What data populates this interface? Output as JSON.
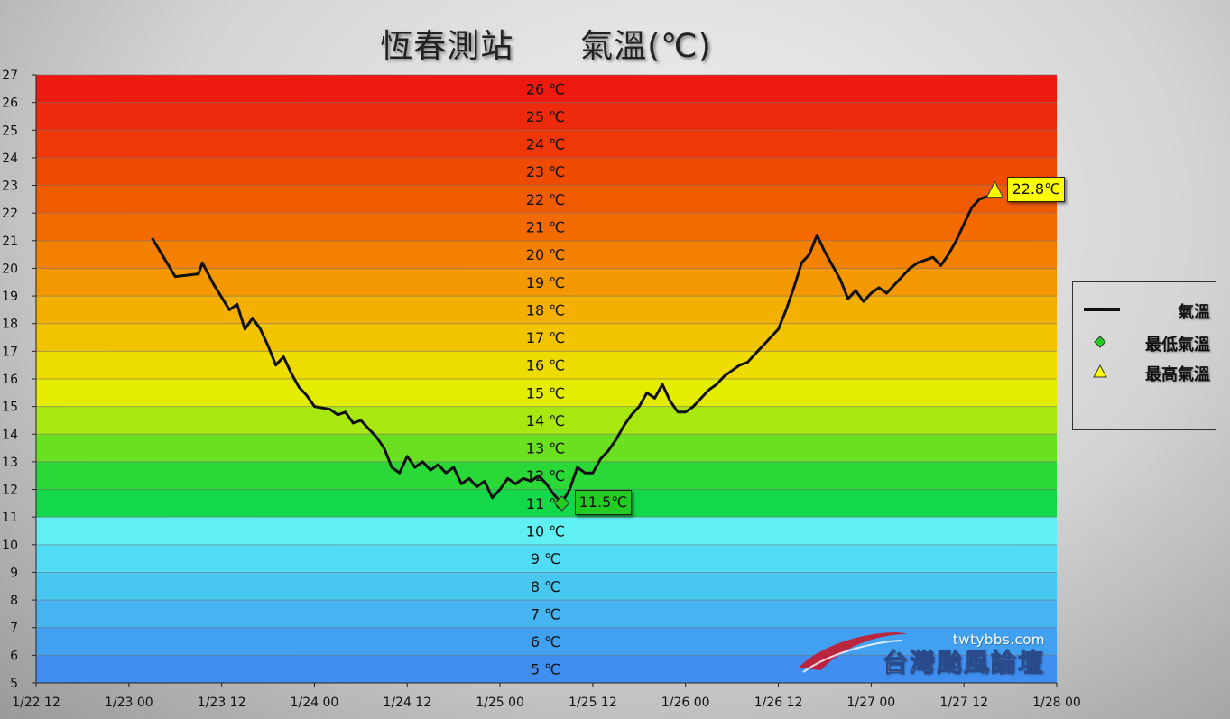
{
  "title": "恆春測站　　氣溫(℃)",
  "legend": {
    "line": "氣溫",
    "min": "最低氣溫",
    "max": "最高氣溫"
  },
  "watermark": {
    "url": "twtybbs.com",
    "name": "台灣颱風論壇"
  },
  "min_label": "11.5℃",
  "max_label": "22.8℃",
  "colors": {
    "line": "#111111",
    "min_marker": "#22cc22",
    "max_marker": "#ffff00"
  },
  "chart_data": {
    "type": "line",
    "title": "恆春測站　　氣溫(℃)",
    "ylim": [
      5,
      27
    ],
    "y_ticks": [
      "5",
      "6",
      "7",
      "8",
      "9",
      "10",
      "11",
      "12",
      "13",
      "14",
      "15",
      "16",
      "17",
      "18",
      "19",
      "20",
      "21",
      "22",
      "23",
      "24",
      "25",
      "26",
      "27"
    ],
    "x_ticks": [
      "1/22 12",
      "1/23 00",
      "1/23 12",
      "1/24 00",
      "1/24 12",
      "1/25 00",
      "1/25 12",
      "1/26 00",
      "1/26 12",
      "1/27 00",
      "1/27 12",
      "1/28 00"
    ],
    "band_labels": [
      "5 ℃",
      "6 ℃",
      "7 ℃",
      "8 ℃",
      "9 ℃",
      "10 ℃",
      "11 ℃",
      "12 ℃",
      "13 ℃",
      "14 ℃",
      "15 ℃",
      "16 ℃",
      "17 ℃",
      "18 ℃",
      "19 ℃",
      "20 ℃",
      "21 ℃",
      "22 ℃",
      "23 ℃",
      "24 ℃",
      "25 ℃",
      "26 ℃"
    ],
    "band_colors": [
      "#3f8ef0",
      "#42a0f0",
      "#45b4f0",
      "#48c8f0",
      "#50dcf4",
      "#60f0f4",
      "#12d84a",
      "#2ad838",
      "#6ae020",
      "#a8e810",
      "#e4ec00",
      "#eedc00",
      "#f2c400",
      "#f4b000",
      "#f49800",
      "#f48000",
      "#f26a00",
      "#f05a00",
      "#ee4a00",
      "#ee3808",
      "#ee2a0c",
      "#ee1a10"
    ],
    "series": [
      {
        "name": "氣溫",
        "points": [
          [
            "1/23 03",
            21.1
          ],
          [
            "1/23 06",
            19.7
          ],
          [
            "1/23 09",
            19.8
          ],
          [
            "1/23 09.5",
            20.2
          ],
          [
            "1/23 11",
            19.4
          ],
          [
            "1/23 13",
            18.5
          ],
          [
            "1/23 14",
            18.7
          ],
          [
            "1/23 15",
            17.8
          ],
          [
            "1/23 16",
            18.2
          ],
          [
            "1/23 17",
            17.8
          ],
          [
            "1/23 18",
            17.2
          ],
          [
            "1/23 19",
            16.5
          ],
          [
            "1/23 20",
            16.8
          ],
          [
            "1/23 21",
            16.2
          ],
          [
            "1/23 22",
            15.7
          ],
          [
            "1/23 23",
            15.4
          ],
          [
            "1/24 00",
            15.0
          ],
          [
            "1/24 02",
            14.9
          ],
          [
            "1/24 03",
            14.7
          ],
          [
            "1/24 04",
            14.8
          ],
          [
            "1/24 05",
            14.4
          ],
          [
            "1/24 06",
            14.5
          ],
          [
            "1/24 07",
            14.2
          ],
          [
            "1/24 08",
            13.9
          ],
          [
            "1/24 09",
            13.5
          ],
          [
            "1/24 10",
            12.8
          ],
          [
            "1/24 11",
            12.6
          ],
          [
            "1/24 12",
            13.2
          ],
          [
            "1/24 13",
            12.8
          ],
          [
            "1/24 14",
            13.0
          ],
          [
            "1/24 15",
            12.7
          ],
          [
            "1/24 16",
            12.9
          ],
          [
            "1/24 17",
            12.6
          ],
          [
            "1/24 18",
            12.8
          ],
          [
            "1/24 19",
            12.2
          ],
          [
            "1/24 20",
            12.4
          ],
          [
            "1/24 21",
            12.1
          ],
          [
            "1/24 22",
            12.3
          ],
          [
            "1/24 23",
            11.7
          ],
          [
            "1/25 00",
            12.0
          ],
          [
            "1/25 01",
            12.4
          ],
          [
            "1/25 02",
            12.2
          ],
          [
            "1/25 03",
            12.4
          ],
          [
            "1/25 04",
            12.3
          ],
          [
            "1/25 05",
            12.5
          ],
          [
            "1/25 06",
            12.2
          ],
          [
            "1/25 07",
            11.8
          ],
          [
            "1/25 08",
            11.5
          ],
          [
            "1/25 09",
            12.0
          ],
          [
            "1/25 10",
            12.8
          ],
          [
            "1/25 11",
            12.6
          ],
          [
            "1/25 12",
            12.6
          ],
          [
            "1/25 13",
            13.1
          ],
          [
            "1/25 14",
            13.4
          ],
          [
            "1/25 15",
            13.8
          ],
          [
            "1/25 16",
            14.3
          ],
          [
            "1/25 17",
            14.7
          ],
          [
            "1/25 18",
            15.0
          ],
          [
            "1/25 19",
            15.5
          ],
          [
            "1/25 20",
            15.3
          ],
          [
            "1/25 21",
            15.8
          ],
          [
            "1/25 22",
            15.2
          ],
          [
            "1/25 23",
            14.8
          ],
          [
            "1/26 00",
            14.8
          ],
          [
            "1/26 01",
            15.0
          ],
          [
            "1/26 02",
            15.3
          ],
          [
            "1/26 03",
            15.6
          ],
          [
            "1/26 04",
            15.8
          ],
          [
            "1/26 05",
            16.1
          ],
          [
            "1/26 06",
            16.3
          ],
          [
            "1/26 07",
            16.5
          ],
          [
            "1/26 08",
            16.6
          ],
          [
            "1/26 09",
            16.9
          ],
          [
            "1/26 10",
            17.2
          ],
          [
            "1/26 11",
            17.5
          ],
          [
            "1/26 12",
            17.8
          ],
          [
            "1/26 13",
            18.5
          ],
          [
            "1/26 14",
            19.3
          ],
          [
            "1/26 15",
            20.2
          ],
          [
            "1/26 16",
            20.5
          ],
          [
            "1/26 17",
            21.2
          ],
          [
            "1/26 18",
            20.6
          ],
          [
            "1/26 19",
            20.1
          ],
          [
            "1/26 20",
            19.6
          ],
          [
            "1/26 21",
            18.9
          ],
          [
            "1/26 22",
            19.2
          ],
          [
            "1/26 23",
            18.8
          ],
          [
            "1/27 00",
            19.1
          ],
          [
            "1/27 01",
            19.3
          ],
          [
            "1/27 02",
            19.1
          ],
          [
            "1/27 03",
            19.4
          ],
          [
            "1/27 04",
            19.7
          ],
          [
            "1/27 05",
            20.0
          ],
          [
            "1/27 06",
            20.2
          ],
          [
            "1/27 07",
            20.3
          ],
          [
            "1/27 08",
            20.4
          ],
          [
            "1/27 09",
            20.1
          ],
          [
            "1/27 10",
            20.5
          ],
          [
            "1/27 11",
            21.0
          ],
          [
            "1/27 12",
            21.6
          ],
          [
            "1/27 13",
            22.2
          ],
          [
            "1/27 14",
            22.5
          ],
          [
            "1/27 15",
            22.6
          ]
        ]
      }
    ],
    "min_point": {
      "x": "1/25 08",
      "y": 11.5
    },
    "max_point": {
      "x": "1/27 16",
      "y": 22.8
    }
  }
}
